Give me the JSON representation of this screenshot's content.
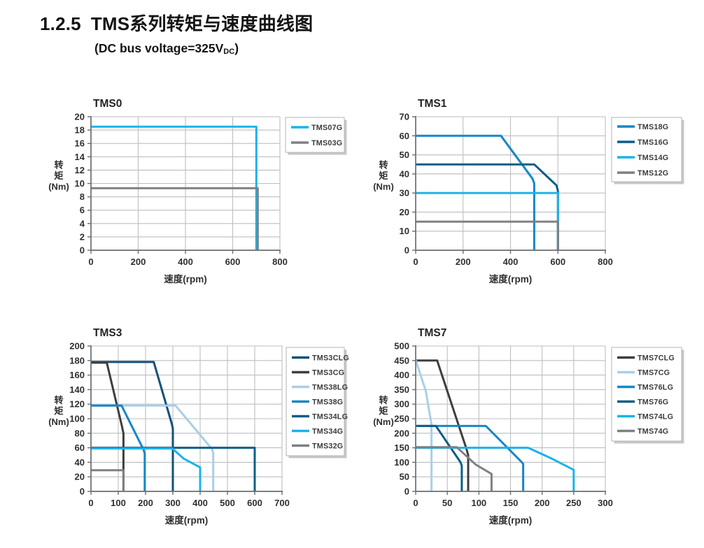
{
  "header": {
    "section_number": "1.2.5",
    "title": "TMS系列转矩与速度曲线图",
    "subtitle_prefix": "(DC bus voltage=325V",
    "subtitle_subscript": "DC",
    "subtitle_suffix": ")"
  },
  "style": {
    "grid_color": "#bcbec0",
    "axis_color": "#6b6d70",
    "tick_text_color": "#2e2f31",
    "chart_title_color": "#232325",
    "legend_text_color": "#3a3b3d",
    "legend_border_color": "#b2b4b6",
    "legend_shadow_color": "#c6c8ca"
  },
  "chart_data": [
    {
      "type": "line",
      "title": "TMS0",
      "xlabel": "速度(rpm)",
      "ylabel_lines": [
        "转",
        "矩",
        "(Nm)"
      ],
      "xlim": [
        0,
        800
      ],
      "xticks": [
        0,
        200,
        400,
        600,
        800
      ],
      "ylim": [
        0,
        20
      ],
      "yticks": [
        0,
        2,
        4,
        6,
        8,
        10,
        12,
        14,
        16,
        18,
        20
      ],
      "grid": true,
      "legend_position": "outside-right",
      "series": [
        {
          "name": "TMS07G",
          "color": "#1bb3e9",
          "points": [
            [
              0,
              18.5
            ],
            [
              700,
              18.5
            ],
            [
              700,
              0
            ]
          ]
        },
        {
          "name": "TMS03G",
          "color": "#7e8083",
          "points": [
            [
              0,
              9.3
            ],
            [
              706,
              9.3
            ],
            [
              706,
              0
            ]
          ]
        }
      ]
    },
    {
      "type": "line",
      "title": "TMS1",
      "xlabel": "速度(rpm)",
      "ylabel_lines": [
        "转",
        "矩",
        "(Nm)"
      ],
      "xlim": [
        0,
        800
      ],
      "xticks": [
        0,
        200,
        400,
        600,
        800
      ],
      "ylim": [
        0,
        70
      ],
      "yticks": [
        0,
        10,
        20,
        30,
        40,
        50,
        60,
        70
      ],
      "grid": true,
      "legend_position": "outside-right",
      "series": [
        {
          "name": "TMS18G",
          "color": "#1787c8",
          "points": [
            [
              0,
              60
            ],
            [
              360,
              60
            ],
            [
              493,
              37.5
            ],
            [
              500,
              35
            ],
            [
              500,
              0
            ]
          ]
        },
        {
          "name": "TMS16G",
          "color": "#0d5e86",
          "points": [
            [
              0,
              45
            ],
            [
              500,
              45
            ],
            [
              594,
              34
            ],
            [
              600,
              31
            ],
            [
              600,
              0
            ]
          ]
        },
        {
          "name": "TMS14G",
          "color": "#1bb3e9",
          "points": [
            [
              0,
              30
            ],
            [
              600,
              30
            ],
            [
              600,
              0
            ]
          ]
        },
        {
          "name": "TMS12G",
          "color": "#7e8083",
          "points": [
            [
              0,
              15
            ],
            [
              600,
              15
            ],
            [
              600,
              0
            ]
          ]
        }
      ]
    },
    {
      "type": "line",
      "title": "TMS3",
      "xlabel": "速度(rpm)",
      "ylabel_lines": [
        "转",
        "矩",
        "(Nm)"
      ],
      "xlim": [
        0,
        700
      ],
      "xticks": [
        0,
        100,
        200,
        300,
        400,
        500,
        600,
        700
      ],
      "ylim": [
        0,
        200
      ],
      "yticks": [
        0,
        20,
        40,
        60,
        80,
        100,
        120,
        140,
        160,
        180,
        200
      ],
      "grid": true,
      "legend_position": "outside-right",
      "series": [
        {
          "name": "TMS3CLG",
          "color": "#15507a",
          "points": [
            [
              0,
              178
            ],
            [
              230,
              178
            ],
            [
              297,
              92
            ],
            [
              300,
              86
            ],
            [
              300,
              0
            ]
          ]
        },
        {
          "name": "TMS3CG",
          "color": "#3e3e40",
          "points": [
            [
              0,
              177
            ],
            [
              58,
              177
            ],
            [
              112,
              92
            ],
            [
              119,
              80
            ],
            [
              119,
              0
            ]
          ]
        },
        {
          "name": "TMS38LG",
          "color": "#a9cfe8",
          "points": [
            [
              0,
              118
            ],
            [
              310,
              118
            ],
            [
              444,
              58
            ],
            [
              448,
              52
            ],
            [
              448,
              0
            ]
          ]
        },
        {
          "name": "TMS38G",
          "color": "#1787c8",
          "points": [
            [
              0,
              118
            ],
            [
              112,
              118
            ],
            [
              193,
              57
            ],
            [
              197,
              52
            ],
            [
              197,
              0
            ]
          ]
        },
        {
          "name": "TMS34LG",
          "color": "#0d5e86",
          "points": [
            [
              0,
              60
            ],
            [
              600,
              60
            ],
            [
              600,
              0
            ]
          ]
        },
        {
          "name": "TMS34G",
          "color": "#1bb3e9",
          "points": [
            [
              0,
              59
            ],
            [
              298,
              59
            ],
            [
              340,
              45
            ],
            [
              400,
              33
            ],
            [
              400,
              0
            ]
          ]
        },
        {
          "name": "TMS32G",
          "color": "#7e8083",
          "points": [
            [
              0,
              29
            ],
            [
              119,
              29
            ],
            [
              119,
              0
            ]
          ]
        }
      ]
    },
    {
      "type": "line",
      "title": "TMS7",
      "xlabel": "速度(rpm)",
      "ylabel_lines": [
        "转",
        "矩",
        "(Nm)"
      ],
      "xlim": [
        0,
        300
      ],
      "xticks": [
        0,
        50,
        100,
        150,
        200,
        250,
        300
      ],
      "ylim": [
        0,
        500
      ],
      "yticks": [
        0,
        50,
        100,
        150,
        200,
        250,
        300,
        350,
        400,
        450,
        500
      ],
      "grid": true,
      "legend_position": "outside-right",
      "series": [
        {
          "name": "TMS7CLG",
          "color": "#3e3e40",
          "points": [
            [
              0,
              450
            ],
            [
              34,
              450
            ],
            [
              80,
              148
            ],
            [
              83,
              125
            ],
            [
              83,
              0
            ]
          ]
        },
        {
          "name": "TMS7CG",
          "color": "#a9cfe8",
          "points": [
            [
              0,
              452
            ],
            [
              16,
              345
            ],
            [
              25,
              230
            ],
            [
              25,
              0
            ]
          ]
        },
        {
          "name": "TMS76LG",
          "color": "#1787c8",
          "points": [
            [
              0,
              225
            ],
            [
              111,
              225
            ],
            [
              168,
              100
            ],
            [
              170,
              95
            ],
            [
              170,
              0
            ]
          ]
        },
        {
          "name": "TMS76G",
          "color": "#0d5e86",
          "points": [
            [
              0,
              225
            ],
            [
              32,
              225
            ],
            [
              71,
              100
            ],
            [
              73,
              88
            ],
            [
              73,
              0
            ]
          ]
        },
        {
          "name": "TMS74LG",
          "color": "#1bb3e9",
          "points": [
            [
              0,
              150
            ],
            [
              178,
              150
            ],
            [
              216,
              112
            ],
            [
              250,
              74
            ],
            [
              250,
              0
            ]
          ]
        },
        {
          "name": "TMS74G",
          "color": "#7e8083",
          "points": [
            [
              0,
              152
            ],
            [
              65,
              152
            ],
            [
              95,
              92
            ],
            [
              120,
              60
            ],
            [
              120,
              0
            ]
          ]
        }
      ]
    }
  ]
}
